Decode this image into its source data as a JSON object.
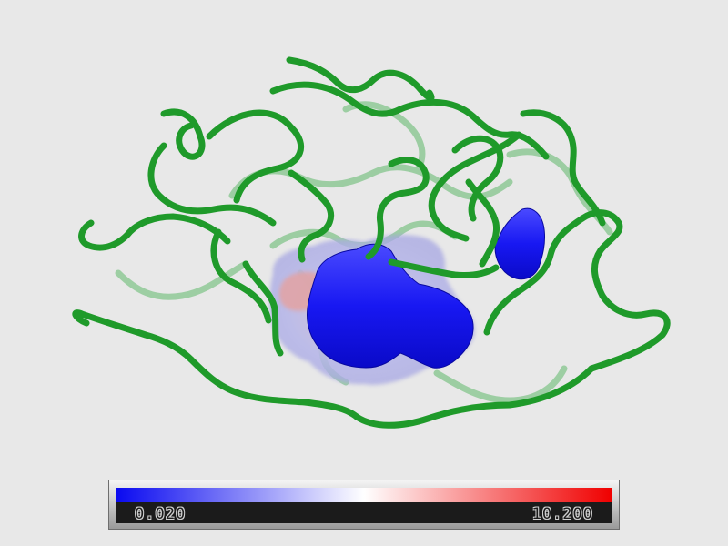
{
  "scene": {
    "background": "#e8e8e8",
    "ribbon_color": "#1f9a2a",
    "surface_colors": {
      "negative": "#1010ee",
      "neutral": "#f2f2f2",
      "positive": "#e01010"
    }
  },
  "colorbar": {
    "min_label": "0.020",
    "max_label": "10.200",
    "colors": [
      "#0a0af0",
      "#ffffff",
      "#f00000"
    ]
  }
}
